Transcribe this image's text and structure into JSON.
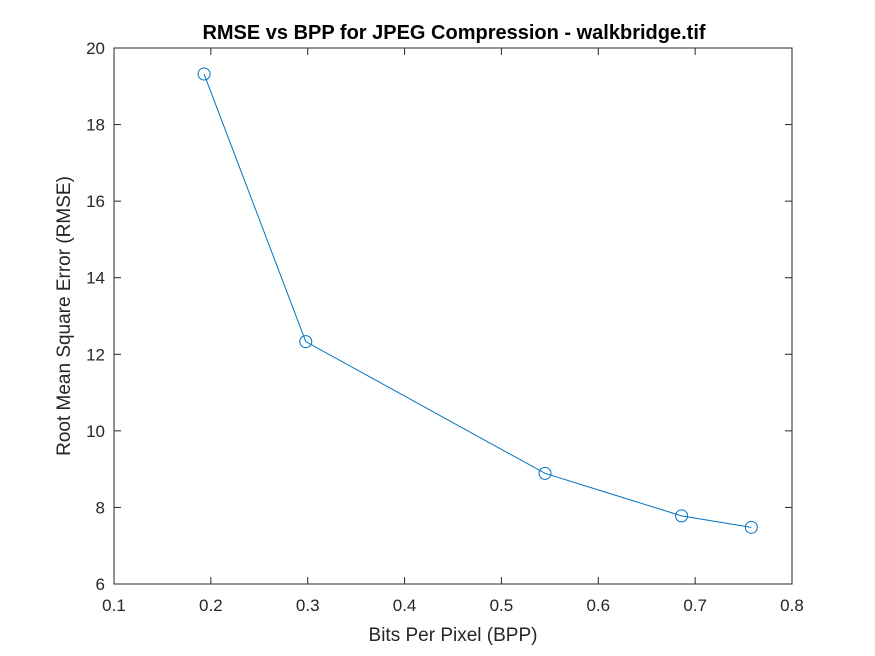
{
  "chart_data": {
    "type": "line",
    "title": "RMSE vs BPP for JPEG Compression - walkbridge.tif",
    "xlabel": "Bits Per Pixel (BPP)",
    "ylabel": "Root Mean Square Error (RMSE)",
    "xlim": [
      0.1,
      0.8
    ],
    "ylim": [
      6,
      20
    ],
    "xticks": [
      0.1,
      0.2,
      0.3,
      0.4,
      0.5,
      0.6,
      0.7,
      0.8
    ],
    "xtick_labels": [
      "0.1",
      "0.2",
      "0.3",
      "0.4",
      "0.5",
      "0.6",
      "0.7",
      "0.8"
    ],
    "yticks": [
      6,
      8,
      10,
      12,
      14,
      16,
      18,
      20
    ],
    "ytick_labels": [
      "6",
      "8",
      "10",
      "12",
      "14",
      "16",
      "18",
      "20"
    ],
    "grid": false,
    "legend": "none",
    "marker": "circle",
    "series": [
      {
        "color": "#0072bd",
        "x": [
          0.193,
          0.298,
          0.545,
          0.686,
          0.758
        ],
        "y": [
          19.32,
          12.33,
          8.89,
          7.78,
          7.48
        ]
      }
    ]
  }
}
